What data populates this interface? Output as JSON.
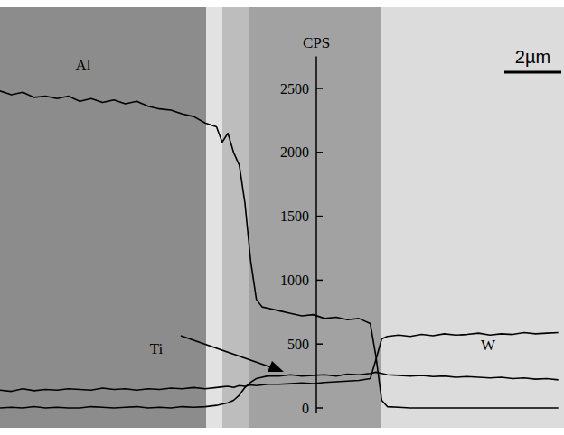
{
  "chart_data": {
    "type": "line",
    "y_label": "CPS",
    "x": [
      0,
      0.4,
      0.8,
      1.2,
      1.6,
      2.0,
      2.4,
      2.8,
      3.2,
      3.6,
      4.0,
      4.4,
      4.8,
      5.2,
      5.6,
      6.0,
      6.4,
      6.8,
      7.2,
      7.6,
      7.8,
      8.0,
      8.2,
      8.4,
      8.6,
      8.8,
      9.0,
      9.2,
      9.4,
      9.8,
      10.2,
      10.6,
      11.0,
      11.4,
      11.8,
      12.2,
      12.6,
      13.0,
      13.2,
      13.4,
      13.6,
      14.0,
      14.4,
      14.8,
      15.2,
      15.6,
      16.0,
      16.4,
      16.8,
      17.2,
      17.6,
      18.0,
      18.4,
      18.8,
      19.2,
      19.6
    ],
    "xlim": [
      0,
      19.8
    ],
    "ylim": [
      0,
      2750
    ],
    "yticks": [
      0,
      500,
      1000,
      1500,
      2000,
      2500
    ],
    "tick_labels": "y",
    "series": [
      {
        "name": "Al",
        "color": "#000000",
        "values": [
          2480,
          2450,
          2470,
          2430,
          2440,
          2420,
          2440,
          2400,
          2420,
          2390,
          2410,
          2380,
          2400,
          2360,
          2340,
          2330,
          2300,
          2280,
          2230,
          2200,
          2080,
          2150,
          2000,
          1900,
          1600,
          1150,
          850,
          790,
          780,
          760,
          740,
          720,
          730,
          700,
          710,
          690,
          700,
          660,
          400,
          60,
          10,
          5,
          0,
          0,
          0,
          0,
          0,
          0,
          0,
          0,
          0,
          0,
          0,
          0,
          0,
          0
        ]
      },
      {
        "name": "Ti",
        "color": "#000000",
        "values": [
          0,
          5,
          0,
          10,
          0,
          5,
          0,
          0,
          10,
          5,
          0,
          5,
          10,
          0,
          5,
          0,
          10,
          5,
          10,
          20,
          30,
          40,
          60,
          100,
          160,
          200,
          230,
          240,
          250,
          250,
          260,
          250,
          255,
          260,
          250,
          265,
          260,
          270,
          280,
          270,
          260,
          255,
          250,
          255,
          245,
          250,
          240,
          245,
          240,
          235,
          240,
          230,
          235,
          225,
          230,
          220
        ]
      },
      {
        "name": "W",
        "color": "#000000",
        "values": [
          140,
          130,
          150,
          135,
          145,
          140,
          150,
          145,
          140,
          155,
          145,
          150,
          140,
          150,
          145,
          155,
          150,
          160,
          150,
          160,
          165,
          170,
          160,
          175,
          170,
          180,
          175,
          180,
          185,
          185,
          190,
          195,
          190,
          200,
          205,
          210,
          215,
          230,
          380,
          540,
          560,
          570,
          560,
          575,
          565,
          580,
          570,
          575,
          585,
          570,
          580,
          575,
          590,
          580,
          585,
          590
        ]
      }
    ],
    "scale_bar": {
      "length": 2,
      "label": "2µm"
    }
  }
}
